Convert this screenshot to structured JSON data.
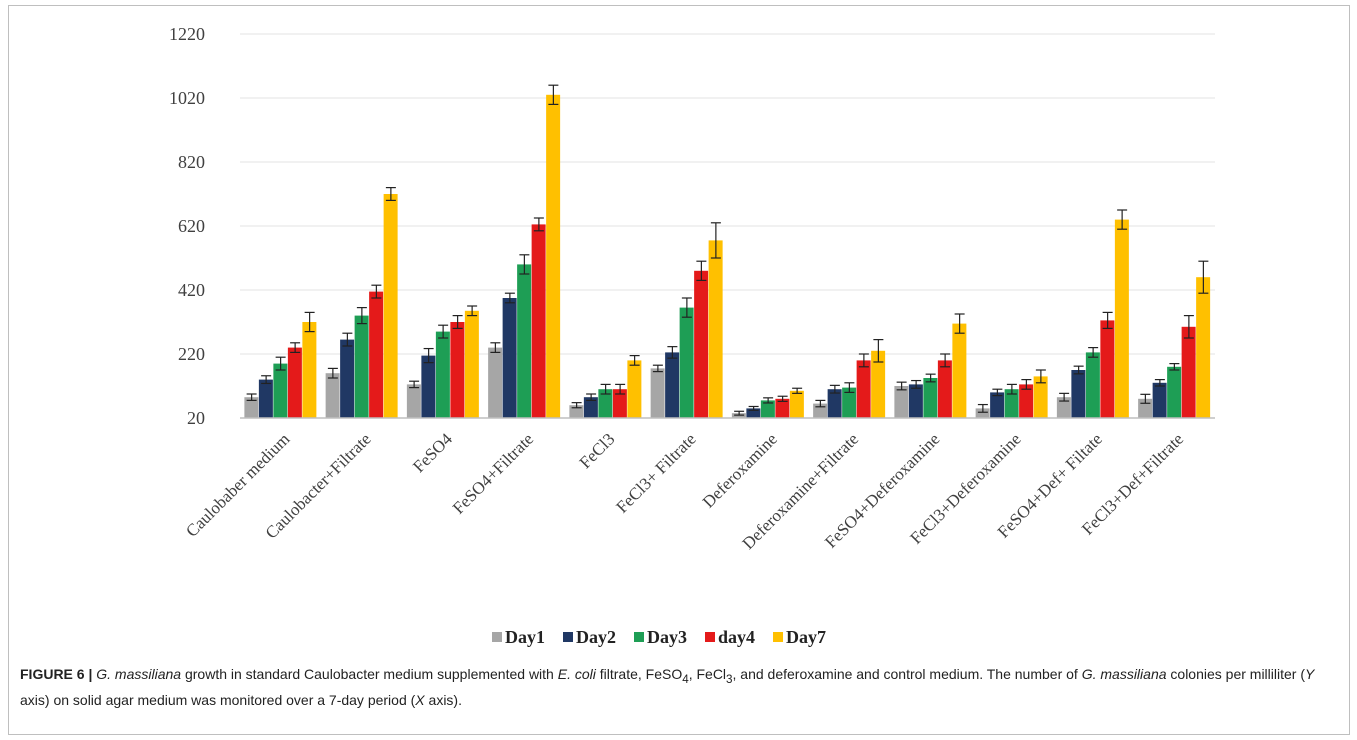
{
  "chart_data": {
    "type": "bar",
    "categories": [
      "Caulobaber  medium",
      "Caulobacter+Filtrate",
      "FeSO4",
      "FeSO4+Filtrate",
      "FeCl3",
      "FeCl3+ Filtrate",
      "Deferoxamine",
      "Deferoxamine+Filtrate",
      "FeSO4+Deferoxamine",
      "FeCl3+Deferoxamine",
      "FeSO4+Def+  Filtate",
      "FeCl3+Def+Filtrate"
    ],
    "series": [
      {
        "name": "Day1",
        "color": "#a6a6a6",
        "values": [
          85,
          160,
          125,
          240,
          60,
          175,
          35,
          65,
          120,
          50,
          85,
          80
        ],
        "errors": [
          10,
          15,
          10,
          15,
          8,
          10,
          6,
          10,
          12,
          12,
          12,
          14
        ]
      },
      {
        "name": "Day2",
        "color": "#203864",
        "values": [
          140,
          265,
          215,
          395,
          85,
          225,
          50,
          110,
          125,
          100,
          170,
          130
        ],
        "errors": [
          12,
          20,
          22,
          15,
          10,
          18,
          6,
          12,
          12,
          10,
          12,
          10
        ]
      },
      {
        "name": "Day3",
        "color": "#1e9e55",
        "values": [
          190,
          340,
          290,
          500,
          110,
          365,
          75,
          115,
          145,
          110,
          225,
          180
        ],
        "errors": [
          20,
          25,
          20,
          30,
          15,
          30,
          8,
          15,
          12,
          15,
          15,
          10
        ]
      },
      {
        "name": "day4",
        "color": "#e41a1a",
        "values": [
          240,
          415,
          320,
          625,
          110,
          480,
          80,
          200,
          200,
          125,
          325,
          305
        ],
        "errors": [
          15,
          20,
          20,
          20,
          15,
          30,
          8,
          20,
          20,
          15,
          25,
          35
        ]
      },
      {
        "name": "Day7",
        "color": "#ffc000",
        "values": [
          320,
          720,
          355,
          1030,
          200,
          575,
          105,
          230,
          315,
          150,
          640,
          460
        ],
        "errors": [
          30,
          20,
          15,
          30,
          15,
          55,
          8,
          35,
          30,
          20,
          30,
          50
        ]
      }
    ],
    "yticks": [
      20,
      220,
      420,
      620,
      820,
      1020,
      1220
    ],
    "ylim": [
      20,
      1220
    ],
    "grid": true,
    "legend": "bottom"
  },
  "caption": {
    "label": "FIGURE 6 |",
    "text_html": "<i>G. massiliana</i> growth in standard Caulobacter medium supplemented with <i>E. coli</i> filtrate, FeSO<sub>4</sub>, FeCl<sub>3</sub>, and deferoxamine and control medium. The number of <i>G. massiliana</i> colonies per milliliter (<i>Y</i> axis) on solid agar medium was monitored over a 7-day period (<i>X</i> axis)."
  }
}
